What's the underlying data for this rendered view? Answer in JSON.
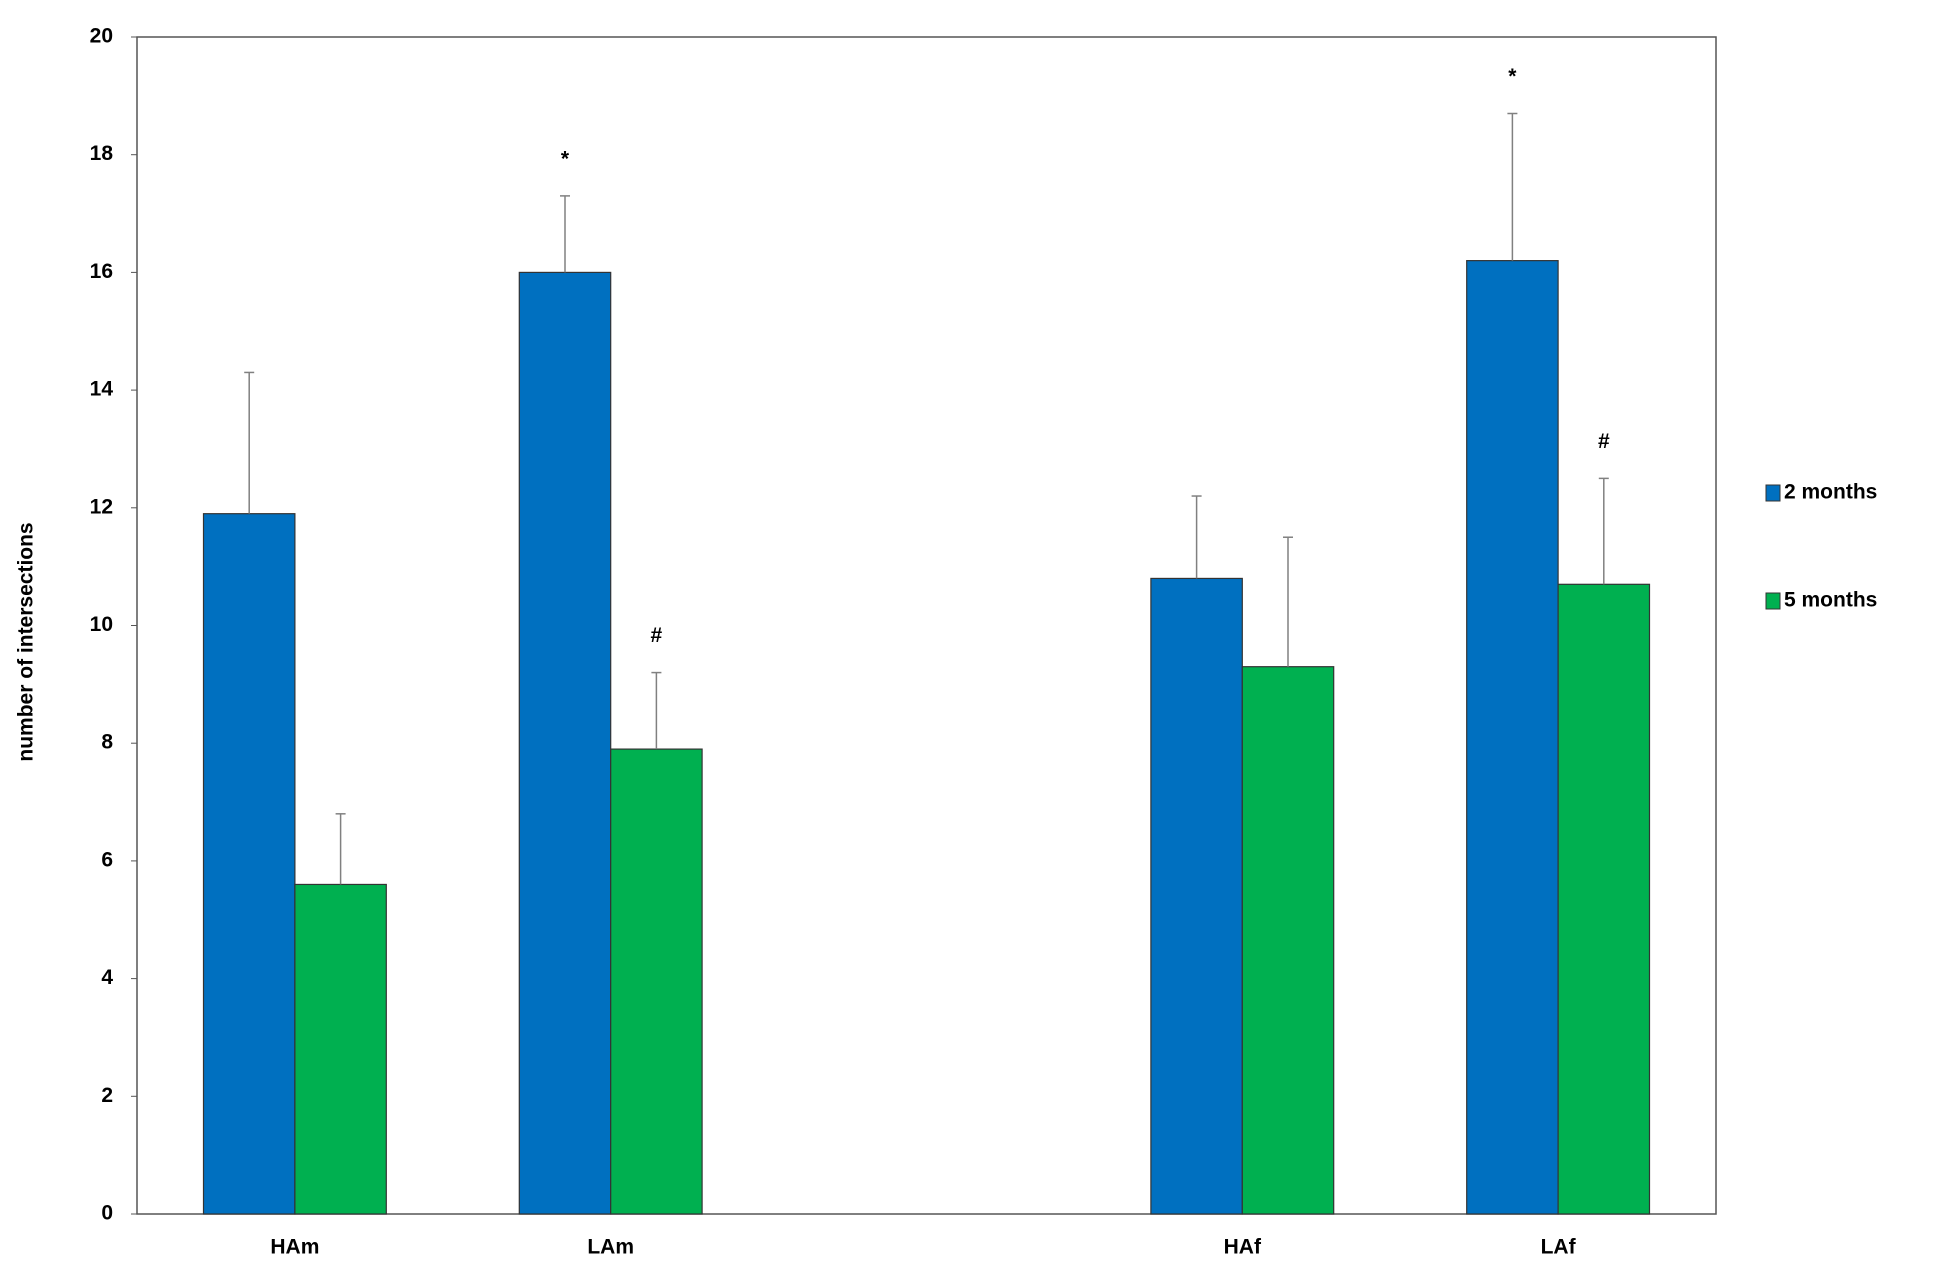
{
  "chart_data": {
    "type": "bar",
    "y_label": "number of intersections",
    "categories": [
      "HAm",
      "LAm",
      null,
      "HAf",
      "LAf"
    ],
    "series": [
      {
        "name": "2 months",
        "color": "#0070c0",
        "values": [
          11.9,
          16.0,
          null,
          10.8,
          16.2
        ],
        "errors": [
          2.4,
          1.3,
          null,
          1.4,
          2.5
        ],
        "markers": [
          null,
          "*",
          null,
          null,
          "*"
        ]
      },
      {
        "name": "5 months",
        "color": "#00b050",
        "values": [
          5.6,
          7.9,
          null,
          9.3,
          10.7
        ],
        "errors": [
          1.2,
          1.3,
          null,
          2.2,
          1.8
        ],
        "markers": [
          null,
          "#",
          null,
          null,
          "#"
        ]
      }
    ],
    "ylim": [
      0,
      20
    ],
    "yticks": [
      0,
      2,
      4,
      6,
      8,
      10,
      12,
      14,
      16,
      18,
      20
    ],
    "legend": "right"
  }
}
